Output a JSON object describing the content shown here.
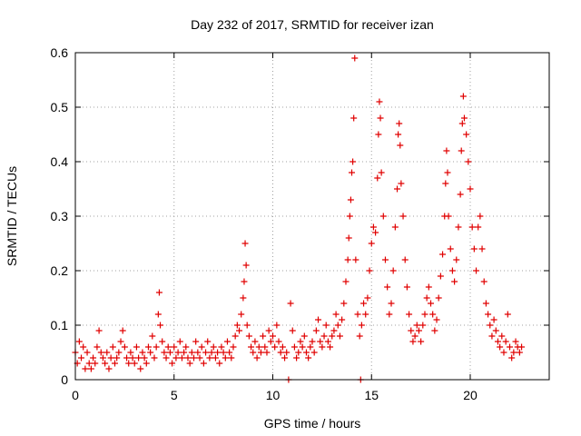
{
  "chart_data": {
    "type": "scatter",
    "title": "Day 232 of 2017, SRMTID for receiver izan",
    "xlabel": "GPS time / hours",
    "ylabel": "SRMTID / TECUs",
    "xlim": [
      0,
      24
    ],
    "ylim": [
      0,
      0.6
    ],
    "xticks": [
      0,
      5,
      10,
      15,
      20
    ],
    "xtick_labels": [
      "0",
      "5",
      "10",
      "15",
      "20"
    ],
    "yticks": [
      0,
      0.1,
      0.2,
      0.3,
      0.4,
      0.5,
      0.6
    ],
    "ytick_labels": [
      "0",
      "0.1",
      "0.2",
      "0.3",
      "0.4",
      "0.5",
      "0.6"
    ],
    "grid": true,
    "marker": "+",
    "series": [
      {
        "name": "SRMTID",
        "color": "#e00000",
        "points": [
          [
            0.0,
            0.05
          ],
          [
            0.1,
            0.03
          ],
          [
            0.2,
            0.07
          ],
          [
            0.3,
            0.04
          ],
          [
            0.4,
            0.06
          ],
          [
            0.5,
            0.02
          ],
          [
            0.6,
            0.05
          ],
          [
            0.7,
            0.03
          ],
          [
            0.8,
            0.02
          ],
          [
            0.9,
            0.04
          ],
          [
            1.0,
            0.03
          ],
          [
            1.1,
            0.06
          ],
          [
            1.2,
            0.09
          ],
          [
            1.3,
            0.05
          ],
          [
            1.4,
            0.04
          ],
          [
            1.5,
            0.03
          ],
          [
            1.6,
            0.05
          ],
          [
            1.7,
            0.02
          ],
          [
            1.8,
            0.04
          ],
          [
            1.9,
            0.06
          ],
          [
            2.0,
            0.03
          ],
          [
            2.1,
            0.04
          ],
          [
            2.2,
            0.05
          ],
          [
            2.3,
            0.07
          ],
          [
            2.4,
            0.09
          ],
          [
            2.5,
            0.06
          ],
          [
            2.6,
            0.04
          ],
          [
            2.7,
            0.03
          ],
          [
            2.8,
            0.05
          ],
          [
            2.9,
            0.04
          ],
          [
            3.0,
            0.03
          ],
          [
            3.1,
            0.06
          ],
          [
            3.2,
            0.04
          ],
          [
            3.3,
            0.02
          ],
          [
            3.4,
            0.05
          ],
          [
            3.5,
            0.04
          ],
          [
            3.6,
            0.03
          ],
          [
            3.7,
            0.06
          ],
          [
            3.8,
            0.05
          ],
          [
            3.9,
            0.08
          ],
          [
            4.0,
            0.04
          ],
          [
            4.1,
            0.06
          ],
          [
            4.2,
            0.12
          ],
          [
            4.25,
            0.16
          ],
          [
            4.3,
            0.1
          ],
          [
            4.4,
            0.07
          ],
          [
            4.5,
            0.05
          ],
          [
            4.6,
            0.04
          ],
          [
            4.7,
            0.06
          ],
          [
            4.8,
            0.05
          ],
          [
            4.9,
            0.03
          ],
          [
            5.0,
            0.06
          ],
          [
            5.1,
            0.04
          ],
          [
            5.2,
            0.05
          ],
          [
            5.3,
            0.07
          ],
          [
            5.4,
            0.04
          ],
          [
            5.5,
            0.05
          ],
          [
            5.6,
            0.06
          ],
          [
            5.7,
            0.04
          ],
          [
            5.8,
            0.03
          ],
          [
            5.9,
            0.05
          ],
          [
            6.0,
            0.04
          ],
          [
            6.1,
            0.07
          ],
          [
            6.2,
            0.05
          ],
          [
            6.3,
            0.04
          ],
          [
            6.4,
            0.06
          ],
          [
            6.5,
            0.03
          ],
          [
            6.6,
            0.05
          ],
          [
            6.7,
            0.07
          ],
          [
            6.8,
            0.04
          ],
          [
            6.9,
            0.05
          ],
          [
            7.0,
            0.06
          ],
          [
            7.1,
            0.04
          ],
          [
            7.2,
            0.05
          ],
          [
            7.3,
            0.03
          ],
          [
            7.4,
            0.06
          ],
          [
            7.5,
            0.05
          ],
          [
            7.6,
            0.04
          ],
          [
            7.7,
            0.07
          ],
          [
            7.8,
            0.05
          ],
          [
            7.9,
            0.04
          ],
          [
            8.0,
            0.06
          ],
          [
            8.1,
            0.08
          ],
          [
            8.2,
            0.1
          ],
          [
            8.3,
            0.09
          ],
          [
            8.4,
            0.12
          ],
          [
            8.5,
            0.15
          ],
          [
            8.55,
            0.18
          ],
          [
            8.6,
            0.25
          ],
          [
            8.65,
            0.21
          ],
          [
            8.7,
            0.1
          ],
          [
            8.8,
            0.08
          ],
          [
            8.9,
            0.06
          ],
          [
            9.0,
            0.05
          ],
          [
            9.1,
            0.07
          ],
          [
            9.2,
            0.04
          ],
          [
            9.3,
            0.06
          ],
          [
            9.4,
            0.05
          ],
          [
            9.5,
            0.08
          ],
          [
            9.6,
            0.06
          ],
          [
            9.7,
            0.05
          ],
          [
            9.8,
            0.09
          ],
          [
            9.9,
            0.07
          ],
          [
            10.0,
            0.08
          ],
          [
            10.1,
            0.06
          ],
          [
            10.2,
            0.1
          ],
          [
            10.3,
            0.07
          ],
          [
            10.4,
            0.05
          ],
          [
            10.5,
            0.06
          ],
          [
            10.6,
            0.04
          ],
          [
            10.7,
            0.05
          ],
          [
            10.8,
            0.0
          ],
          [
            10.9,
            0.14
          ],
          [
            11.0,
            0.09
          ],
          [
            11.1,
            0.06
          ],
          [
            11.2,
            0.04
          ],
          [
            11.3,
            0.05
          ],
          [
            11.4,
            0.07
          ],
          [
            11.5,
            0.06
          ],
          [
            11.6,
            0.08
          ],
          [
            11.7,
            0.05
          ],
          [
            11.8,
            0.04
          ],
          [
            11.9,
            0.06
          ],
          [
            12.0,
            0.07
          ],
          [
            12.1,
            0.05
          ],
          [
            12.2,
            0.09
          ],
          [
            12.3,
            0.11
          ],
          [
            12.4,
            0.07
          ],
          [
            12.5,
            0.06
          ],
          [
            12.6,
            0.08
          ],
          [
            12.7,
            0.1
          ],
          [
            12.8,
            0.07
          ],
          [
            12.9,
            0.06
          ],
          [
            13.0,
            0.08
          ],
          [
            13.1,
            0.09
          ],
          [
            13.2,
            0.12
          ],
          [
            13.3,
            0.1
          ],
          [
            13.4,
            0.08
          ],
          [
            13.5,
            0.11
          ],
          [
            13.6,
            0.14
          ],
          [
            13.7,
            0.18
          ],
          [
            13.8,
            0.22
          ],
          [
            13.85,
            0.26
          ],
          [
            13.9,
            0.3
          ],
          [
            13.95,
            0.33
          ],
          [
            14.0,
            0.38
          ],
          [
            14.05,
            0.4
          ],
          [
            14.1,
            0.48
          ],
          [
            14.15,
            0.59
          ],
          [
            14.2,
            0.22
          ],
          [
            14.3,
            0.12
          ],
          [
            14.4,
            0.08
          ],
          [
            14.45,
            0.0
          ],
          [
            14.5,
            0.1
          ],
          [
            14.6,
            0.14
          ],
          [
            14.7,
            0.12
          ],
          [
            14.8,
            0.15
          ],
          [
            14.9,
            0.2
          ],
          [
            15.0,
            0.25
          ],
          [
            15.1,
            0.28
          ],
          [
            15.2,
            0.27
          ],
          [
            15.3,
            0.37
          ],
          [
            15.35,
            0.45
          ],
          [
            15.4,
            0.51
          ],
          [
            15.45,
            0.48
          ],
          [
            15.5,
            0.38
          ],
          [
            15.6,
            0.3
          ],
          [
            15.7,
            0.22
          ],
          [
            15.8,
            0.17
          ],
          [
            15.9,
            0.12
          ],
          [
            16.0,
            0.14
          ],
          [
            16.1,
            0.2
          ],
          [
            16.2,
            0.28
          ],
          [
            16.3,
            0.35
          ],
          [
            16.35,
            0.45
          ],
          [
            16.4,
            0.47
          ],
          [
            16.45,
            0.43
          ],
          [
            16.5,
            0.36
          ],
          [
            16.6,
            0.3
          ],
          [
            16.7,
            0.22
          ],
          [
            16.8,
            0.17
          ],
          [
            16.9,
            0.12
          ],
          [
            17.0,
            0.09
          ],
          [
            17.1,
            0.07
          ],
          [
            17.2,
            0.08
          ],
          [
            17.3,
            0.1
          ],
          [
            17.4,
            0.09
          ],
          [
            17.5,
            0.07
          ],
          [
            17.6,
            0.1
          ],
          [
            17.7,
            0.12
          ],
          [
            17.8,
            0.15
          ],
          [
            17.9,
            0.17
          ],
          [
            18.0,
            0.14
          ],
          [
            18.1,
            0.12
          ],
          [
            18.2,
            0.09
          ],
          [
            18.3,
            0.11
          ],
          [
            18.4,
            0.15
          ],
          [
            18.5,
            0.19
          ],
          [
            18.6,
            0.23
          ],
          [
            18.7,
            0.3
          ],
          [
            18.75,
            0.36
          ],
          [
            18.8,
            0.42
          ],
          [
            18.85,
            0.38
          ],
          [
            18.9,
            0.3
          ],
          [
            19.0,
            0.24
          ],
          [
            19.1,
            0.2
          ],
          [
            19.2,
            0.18
          ],
          [
            19.3,
            0.22
          ],
          [
            19.4,
            0.28
          ],
          [
            19.5,
            0.34
          ],
          [
            19.55,
            0.42
          ],
          [
            19.6,
            0.47
          ],
          [
            19.65,
            0.52
          ],
          [
            19.7,
            0.48
          ],
          [
            19.8,
            0.45
          ],
          [
            19.9,
            0.4
          ],
          [
            20.0,
            0.35
          ],
          [
            20.1,
            0.28
          ],
          [
            20.2,
            0.24
          ],
          [
            20.3,
            0.2
          ],
          [
            20.4,
            0.28
          ],
          [
            20.5,
            0.3
          ],
          [
            20.6,
            0.24
          ],
          [
            20.7,
            0.18
          ],
          [
            20.8,
            0.14
          ],
          [
            20.9,
            0.12
          ],
          [
            21.0,
            0.1
          ],
          [
            21.1,
            0.08
          ],
          [
            21.2,
            0.11
          ],
          [
            21.3,
            0.09
          ],
          [
            21.4,
            0.07
          ],
          [
            21.5,
            0.06
          ],
          [
            21.6,
            0.08
          ],
          [
            21.7,
            0.05
          ],
          [
            21.8,
            0.07
          ],
          [
            21.9,
            0.12
          ],
          [
            22.0,
            0.06
          ],
          [
            22.1,
            0.04
          ],
          [
            22.2,
            0.05
          ],
          [
            22.3,
            0.07
          ],
          [
            22.4,
            0.06
          ],
          [
            22.5,
            0.05
          ],
          [
            22.6,
            0.06
          ]
        ]
      }
    ]
  }
}
